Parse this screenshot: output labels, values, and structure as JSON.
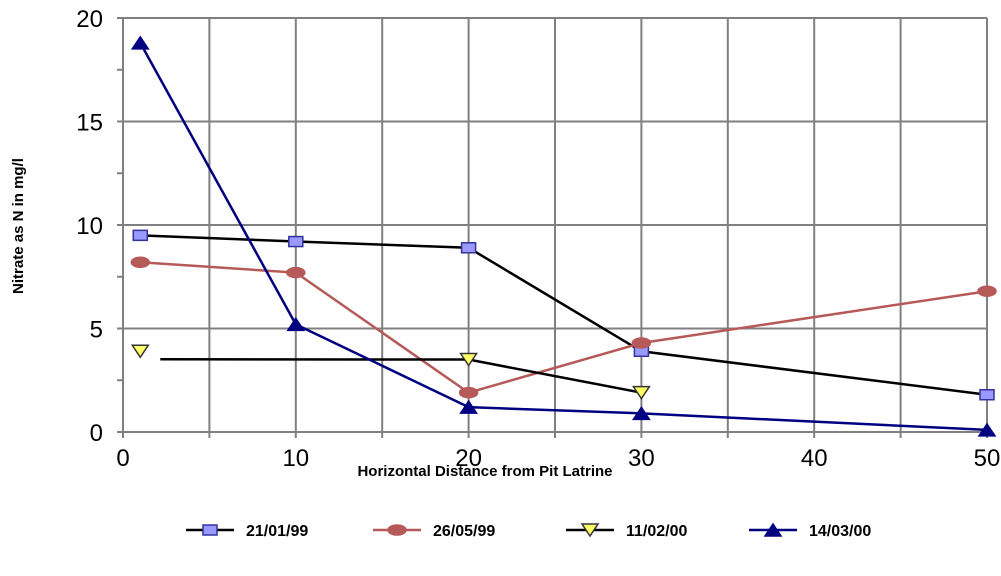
{
  "chart_data": {
    "type": "line",
    "xlabel": "Horizontal Distance from Pit Latrine",
    "ylabel": "Nitrate as N in mg/l",
    "xlim": [
      0,
      50
    ],
    "ylim": [
      0,
      20
    ],
    "x_ticks": [
      0,
      10,
      20,
      30,
      40,
      50
    ],
    "y_ticks": [
      0,
      5,
      10,
      15,
      20
    ],
    "grid": true,
    "legend_position": "bottom",
    "series": [
      {
        "name": "21/01/99",
        "line_color": "#000000",
        "marker": "square",
        "marker_fill": "#9999ff",
        "marker_stroke": "#333399",
        "x": [
          1,
          10,
          20,
          30,
          50
        ],
        "y": [
          9.5,
          9.2,
          8.9,
          3.9,
          1.8
        ]
      },
      {
        "name": "26/05/99",
        "line_color": "#b65a59",
        "marker": "circle",
        "marker_fill": "#b65a59",
        "marker_stroke": "#b65a59",
        "x": [
          1,
          10,
          20,
          30,
          50
        ],
        "y": [
          8.2,
          7.7,
          1.9,
          4.3,
          6.8
        ]
      },
      {
        "name": "11/02/00",
        "line_color": "#000000",
        "marker": "triangle-down",
        "marker_fill": "#ffff66",
        "marker_stroke": "#333333",
        "x": [
          1,
          20,
          30
        ],
        "y": [
          3.9,
          3.5,
          1.9
        ]
      },
      {
        "name": "14/03/00",
        "line_color": "#000080",
        "marker": "triangle-up",
        "marker_fill": "#000080",
        "marker_stroke": "#000080",
        "x": [
          1,
          10,
          20,
          30,
          50
        ],
        "y": [
          18.8,
          5.2,
          1.2,
          0.9,
          0.1
        ]
      }
    ]
  }
}
